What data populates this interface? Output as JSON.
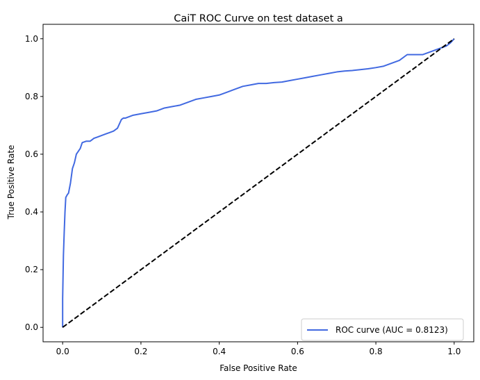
{
  "chart_data": {
    "type": "line",
    "title": "CaiT ROC Curve on test dataset a",
    "xlabel": "False Positive Rate",
    "ylabel": "True Positive Rate",
    "xlim": [
      -0.05,
      1.05
    ],
    "ylim": [
      -0.05,
      1.05
    ],
    "xticks": [
      0.0,
      0.2,
      0.4,
      0.6,
      0.8,
      1.0
    ],
    "yticks": [
      0.0,
      0.2,
      0.4,
      0.6,
      0.8,
      1.0
    ],
    "xtick_labels": [
      "0.0",
      "0.2",
      "0.4",
      "0.6",
      "0.8",
      "1.0"
    ],
    "ytick_labels": [
      "0.0",
      "0.2",
      "0.4",
      "0.6",
      "0.8",
      "1.0"
    ],
    "grid": false,
    "legend_position": "lower-right",
    "series": [
      {
        "name": "ROC curve (AUC = 0.8123)",
        "color": "#4169e1",
        "style": "solid",
        "x": [
          0.0,
          0.0,
          0.002,
          0.004,
          0.006,
          0.008,
          0.01,
          0.012,
          0.015,
          0.02,
          0.025,
          0.03,
          0.035,
          0.04,
          0.045,
          0.05,
          0.06,
          0.07,
          0.08,
          0.09,
          0.1,
          0.11,
          0.12,
          0.13,
          0.14,
          0.15,
          0.155,
          0.16,
          0.18,
          0.2,
          0.22,
          0.24,
          0.26,
          0.28,
          0.3,
          0.32,
          0.34,
          0.36,
          0.38,
          0.4,
          0.42,
          0.44,
          0.46,
          0.48,
          0.5,
          0.52,
          0.54,
          0.56,
          0.58,
          0.6,
          0.62,
          0.64,
          0.66,
          0.68,
          0.7,
          0.72,
          0.74,
          0.76,
          0.78,
          0.8,
          0.82,
          0.84,
          0.86,
          0.88,
          0.9,
          0.92,
          0.94,
          0.96,
          0.98,
          0.99,
          1.0
        ],
        "y": [
          0.0,
          0.1,
          0.25,
          0.33,
          0.4,
          0.45,
          0.455,
          0.46,
          0.465,
          0.5,
          0.55,
          0.57,
          0.6,
          0.61,
          0.62,
          0.64,
          0.645,
          0.645,
          0.655,
          0.66,
          0.665,
          0.67,
          0.675,
          0.68,
          0.69,
          0.72,
          0.725,
          0.725,
          0.735,
          0.74,
          0.745,
          0.75,
          0.76,
          0.765,
          0.77,
          0.78,
          0.79,
          0.795,
          0.8,
          0.805,
          0.815,
          0.825,
          0.835,
          0.84,
          0.845,
          0.845,
          0.848,
          0.85,
          0.855,
          0.86,
          0.865,
          0.87,
          0.875,
          0.88,
          0.885,
          0.888,
          0.89,
          0.893,
          0.896,
          0.9,
          0.905,
          0.915,
          0.925,
          0.945,
          0.945,
          0.945,
          0.955,
          0.965,
          0.975,
          0.985,
          1.0
        ]
      },
      {
        "name": "",
        "color": "#000000",
        "style": "dashed",
        "x": [
          0.0,
          1.0
        ],
        "y": [
          0.0,
          1.0
        ]
      }
    ]
  }
}
